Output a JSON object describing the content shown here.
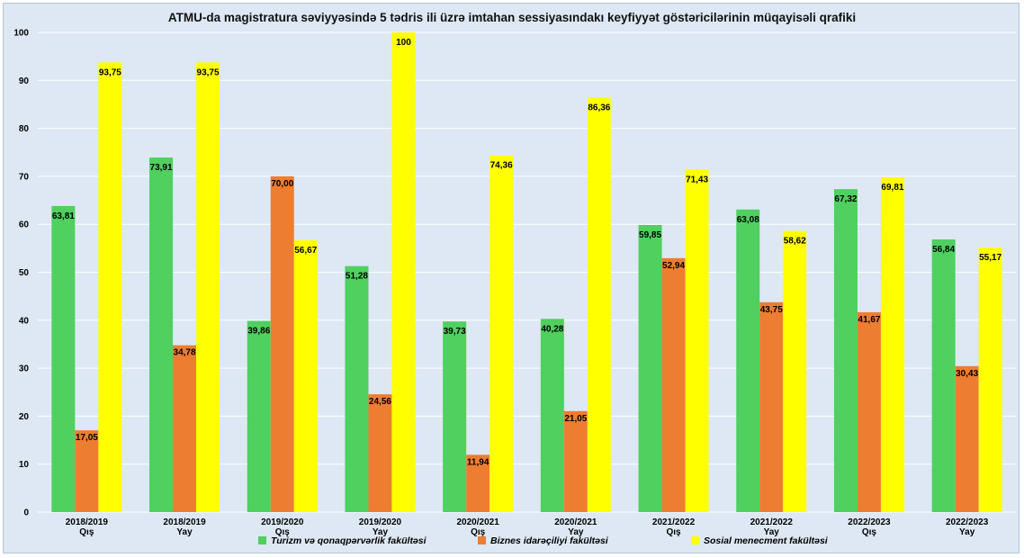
{
  "chart_data": {
    "type": "bar",
    "title": "ATMU-da magistratura səviyyəsində 5 tədris ili üzrə imtahan sessiyasındakı keyfiyyət göstəricilərinin müqayisəli qrafiki",
    "categories": [
      [
        "2018/2019",
        "Qış"
      ],
      [
        "2018/2019",
        "Yay"
      ],
      [
        "2019/2020",
        "Qış"
      ],
      [
        "2019/2020",
        "Yay"
      ],
      [
        "2020/2021",
        "Qış"
      ],
      [
        "2020/2021",
        "Yay"
      ],
      [
        "2021/2022",
        "Qış"
      ],
      [
        "2021/2022",
        "Yay"
      ],
      [
        "2022/2023",
        "Qış"
      ],
      [
        "2022/2023",
        "Yay"
      ]
    ],
    "series": [
      {
        "name": "Turizm və qonaqpərvərlik fakültəsi",
        "color": "#4fd05f",
        "values": [
          63.81,
          73.91,
          39.86,
          51.28,
          39.73,
          40.28,
          59.85,
          63.08,
          67.32,
          56.84
        ],
        "labels": [
          "63,81",
          "73,91",
          "39,86",
          "51,28",
          "39,73",
          "40,28",
          "59,85",
          "63,08",
          "67,32",
          "56,84"
        ]
      },
      {
        "name": "Biznes idarəçiliyi fakültəsi",
        "color": "#ed7d31",
        "values": [
          17.05,
          34.78,
          70.0,
          24.56,
          11.94,
          21.05,
          52.94,
          43.75,
          41.67,
          30.43
        ],
        "labels": [
          "17,05",
          "34,78",
          "70,00",
          "24,56",
          "11,94",
          "21,05",
          "52,94",
          "43,75",
          "41,67",
          "30,43"
        ]
      },
      {
        "name": "Sosial menecment fakültəsi",
        "color": "#ffff00",
        "values": [
          93.75,
          93.75,
          56.67,
          100,
          74.36,
          86.36,
          71.43,
          58.62,
          69.81,
          55.17
        ],
        "labels": [
          "93,75",
          "93,75",
          "56,67",
          "100",
          "74,36",
          "86,36",
          "71,43",
          "58,62",
          "69,81",
          "55,17"
        ]
      }
    ],
    "ylim": [
      0,
      100
    ],
    "yticks": [
      0,
      10,
      20,
      30,
      40,
      50,
      60,
      70,
      80,
      90,
      100
    ],
    "grid": true,
    "legend": "bottom",
    "gridColor": "#ffffff"
  }
}
